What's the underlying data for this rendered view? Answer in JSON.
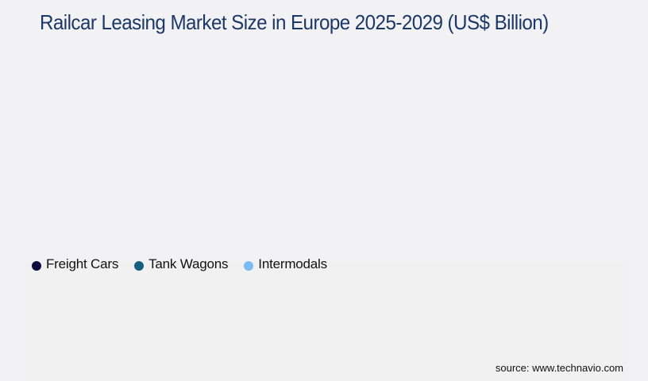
{
  "header": {
    "title": "Railcar Leasing Market Size in Europe 2025-2029 (US$ Billion)"
  },
  "legend": {
    "items": [
      {
        "label": "Freight Cars",
        "color": "#0b0d3f"
      },
      {
        "label": "Tank Wagons",
        "color": "#16607f"
      },
      {
        "label": "Intermodals",
        "color": "#79bbf2"
      }
    ]
  },
  "footer": {
    "source": "source: www.technavio.com"
  },
  "chart_data": {
    "type": "bar",
    "title": "Railcar Leasing Market Size in Europe 2025-2029 (US$ Billion)",
    "categories": [],
    "series": [
      {
        "name": "Freight Cars",
        "color": "#0b0d3f",
        "values": []
      },
      {
        "name": "Tank Wagons",
        "color": "#16607f",
        "values": []
      },
      {
        "name": "Intermodals",
        "color": "#79bbf2",
        "values": []
      }
    ],
    "xlabel": "",
    "ylabel": "",
    "legend_position": "top-left",
    "grid": false,
    "source": "source: www.technavio.com"
  }
}
